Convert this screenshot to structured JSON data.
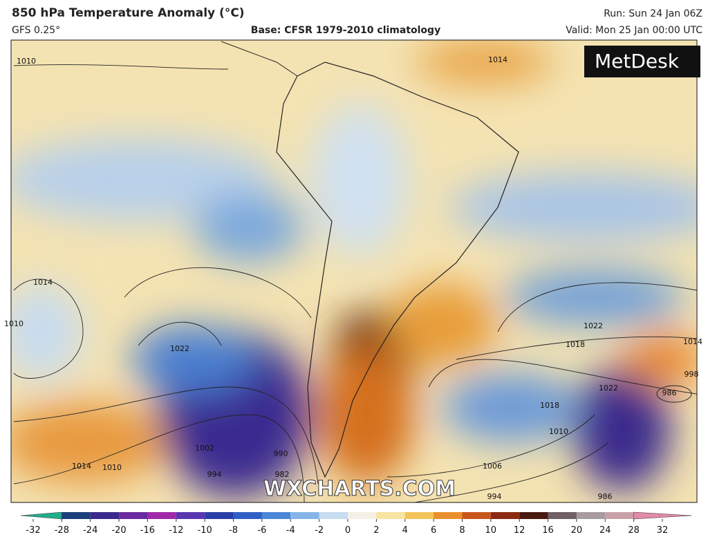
{
  "header": {
    "title": "850 hPa Temperature Anomaly (°C)",
    "model": "GFS 0.25°",
    "base": "Base: CFSR 1979-2010 climatology",
    "run": "Run: Sun 24 Jan 06Z",
    "valid": "Valid: Mon 25 Jan 00:00 UTC"
  },
  "logo": "MetDesk",
  "watermark": "WXCHARTS.COM",
  "isobar_labels": [
    "1010",
    "1014",
    "1014",
    "1010",
    "1022",
    "1022",
    "1022",
    "1018",
    "1014",
    "998",
    "986",
    "1018",
    "1010",
    "1006",
    "1002",
    "994",
    "990",
    "982",
    "994",
    "1014",
    "1010",
    "986"
  ],
  "colorbar": {
    "ticks": [
      -32,
      -28,
      -24,
      -20,
      -16,
      -12,
      -10,
      -8,
      -6,
      -4,
      -2,
      0,
      2,
      4,
      6,
      8,
      10,
      12,
      16,
      20,
      24,
      28,
      32
    ],
    "colors": [
      "#1fae8c",
      "#1b3f7a",
      "#3a2a8c",
      "#6a2aa0",
      "#a02aa8",
      "#5a36b0",
      "#2a3ea8",
      "#2f5fc4",
      "#4b86d6",
      "#86b4e6",
      "#c8dcf2",
      "#f4f0e6",
      "#f6e4a0",
      "#f2c35a",
      "#e9902e",
      "#c8561c",
      "#8a2a12",
      "#4a1a10",
      "#6e6064",
      "#a89ca0",
      "#c9a0a8",
      "#e28aa6"
    ]
  }
}
